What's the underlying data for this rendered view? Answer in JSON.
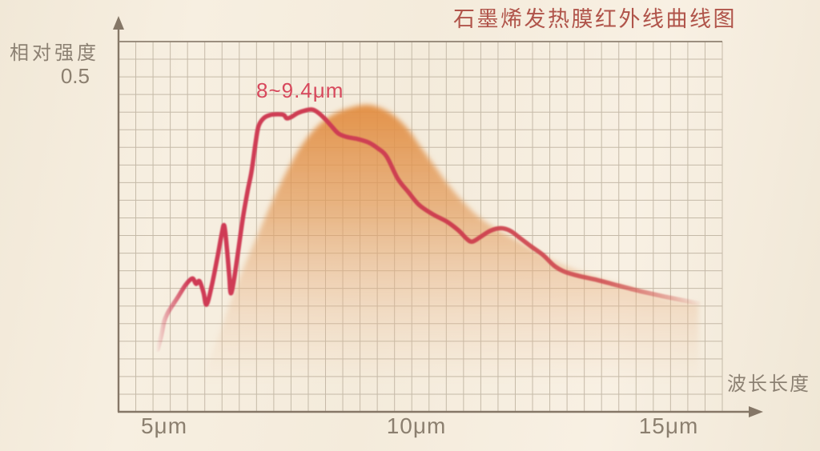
{
  "title": "石墨烯发热膜红外线曲线图",
  "axes": {
    "y_label": "相对强度",
    "y_tick": "0.5",
    "x_label": "波长长度",
    "x_ticks": [
      {
        "label": "5μm",
        "um": 5
      },
      {
        "label": "10μm",
        "um": 10
      },
      {
        "label": "15μm",
        "um": 15
      }
    ]
  },
  "annotation": {
    "text": "8~9.4μm",
    "x_um": 6.86,
    "y": 0.478
  },
  "colors": {
    "background": "#f5edde",
    "grid_line": "#c5baa8",
    "axis_line": "#857767",
    "title_red": "#b0544a",
    "annotation_red": "#d7485c",
    "curve_red": "#ce3b50",
    "area_orange": "#e5944d",
    "label_gray": "#8c8173"
  },
  "chart_data": {
    "type": "area",
    "title": "石墨烯发热膜红外线曲线图",
    "xlabel": "波长长度",
    "ylabel": "相对强度",
    "x_unit": "μm",
    "xlim": [
      4.1,
      16.1
    ],
    "ylim": [
      0,
      0.55
    ],
    "x_tick_values": [
      5,
      10,
      15
    ],
    "y_tick_values": [
      0.5
    ],
    "grid": true,
    "legend": false,
    "annotation": {
      "text": "8~9.4μm",
      "x_um": 6.86,
      "y": 0.478
    },
    "series": [
      {
        "name": "emission_band_area",
        "type": "area",
        "points": [
          [
            5.67,
            0.004
          ],
          [
            5.75,
            0.032
          ],
          [
            5.9,
            0.075
          ],
          [
            6.11,
            0.119
          ],
          [
            6.35,
            0.171
          ],
          [
            6.59,
            0.218
          ],
          [
            6.86,
            0.265
          ],
          [
            7.14,
            0.314
          ],
          [
            7.43,
            0.359
          ],
          [
            7.71,
            0.396
          ],
          [
            8.02,
            0.425
          ],
          [
            8.33,
            0.443
          ],
          [
            8.65,
            0.453
          ],
          [
            8.97,
            0.458
          ],
          [
            9.24,
            0.455
          ],
          [
            9.52,
            0.444
          ],
          [
            9.81,
            0.424
          ],
          [
            10.08,
            0.396
          ],
          [
            10.35,
            0.368
          ],
          [
            10.63,
            0.339
          ],
          [
            10.92,
            0.314
          ],
          [
            11.22,
            0.292
          ],
          [
            11.56,
            0.274
          ],
          [
            11.94,
            0.258
          ],
          [
            12.35,
            0.241
          ],
          [
            12.79,
            0.223
          ],
          [
            13.27,
            0.209
          ],
          [
            13.78,
            0.196
          ],
          [
            14.37,
            0.183
          ],
          [
            15.0,
            0.169
          ],
          [
            15.59,
            0.16
          ]
        ]
      },
      {
        "name": "infrared_intensity_line",
        "type": "line",
        "points": [
          [
            4.87,
            0.093
          ],
          [
            4.94,
            0.113
          ],
          [
            5.0,
            0.135
          ],
          [
            5.06,
            0.146
          ],
          [
            5.13,
            0.155
          ],
          [
            5.27,
            0.171
          ],
          [
            5.43,
            0.19
          ],
          [
            5.56,
            0.199
          ],
          [
            5.63,
            0.191
          ],
          [
            5.7,
            0.195
          ],
          [
            5.78,
            0.178
          ],
          [
            5.84,
            0.16
          ],
          [
            5.94,
            0.187
          ],
          [
            6.05,
            0.228
          ],
          [
            6.14,
            0.265
          ],
          [
            6.19,
            0.278
          ],
          [
            6.24,
            0.247
          ],
          [
            6.29,
            0.203
          ],
          [
            6.32,
            0.177
          ],
          [
            6.38,
            0.195
          ],
          [
            6.46,
            0.236
          ],
          [
            6.56,
            0.289
          ],
          [
            6.65,
            0.328
          ],
          [
            6.73,
            0.358
          ],
          [
            6.81,
            0.4
          ],
          [
            6.87,
            0.426
          ],
          [
            6.97,
            0.438
          ],
          [
            7.1,
            0.443
          ],
          [
            7.25,
            0.444
          ],
          [
            7.37,
            0.443
          ],
          [
            7.43,
            0.438
          ],
          [
            7.52,
            0.44
          ],
          [
            7.65,
            0.446
          ],
          [
            7.81,
            0.45
          ],
          [
            7.94,
            0.451
          ],
          [
            8.06,
            0.446
          ],
          [
            8.19,
            0.437
          ],
          [
            8.32,
            0.426
          ],
          [
            8.46,
            0.415
          ],
          [
            8.63,
            0.41
          ],
          [
            8.84,
            0.407
          ],
          [
            9.05,
            0.402
          ],
          [
            9.24,
            0.393
          ],
          [
            9.41,
            0.381
          ],
          [
            9.63,
            0.348
          ],
          [
            9.84,
            0.328
          ],
          [
            10.05,
            0.309
          ],
          [
            10.32,
            0.295
          ],
          [
            10.6,
            0.284
          ],
          [
            10.83,
            0.271
          ],
          [
            11.0,
            0.258
          ],
          [
            11.11,
            0.254
          ],
          [
            11.27,
            0.261
          ],
          [
            11.46,
            0.27
          ],
          [
            11.67,
            0.274
          ],
          [
            11.86,
            0.27
          ],
          [
            12.06,
            0.259
          ],
          [
            12.27,
            0.247
          ],
          [
            12.51,
            0.234
          ],
          [
            12.73,
            0.218
          ],
          [
            12.94,
            0.209
          ],
          [
            13.21,
            0.203
          ],
          [
            13.57,
            0.197
          ],
          [
            13.97,
            0.189
          ],
          [
            14.44,
            0.18
          ],
          [
            14.92,
            0.172
          ],
          [
            15.32,
            0.166
          ],
          [
            15.59,
            0.162
          ]
        ]
      }
    ]
  }
}
